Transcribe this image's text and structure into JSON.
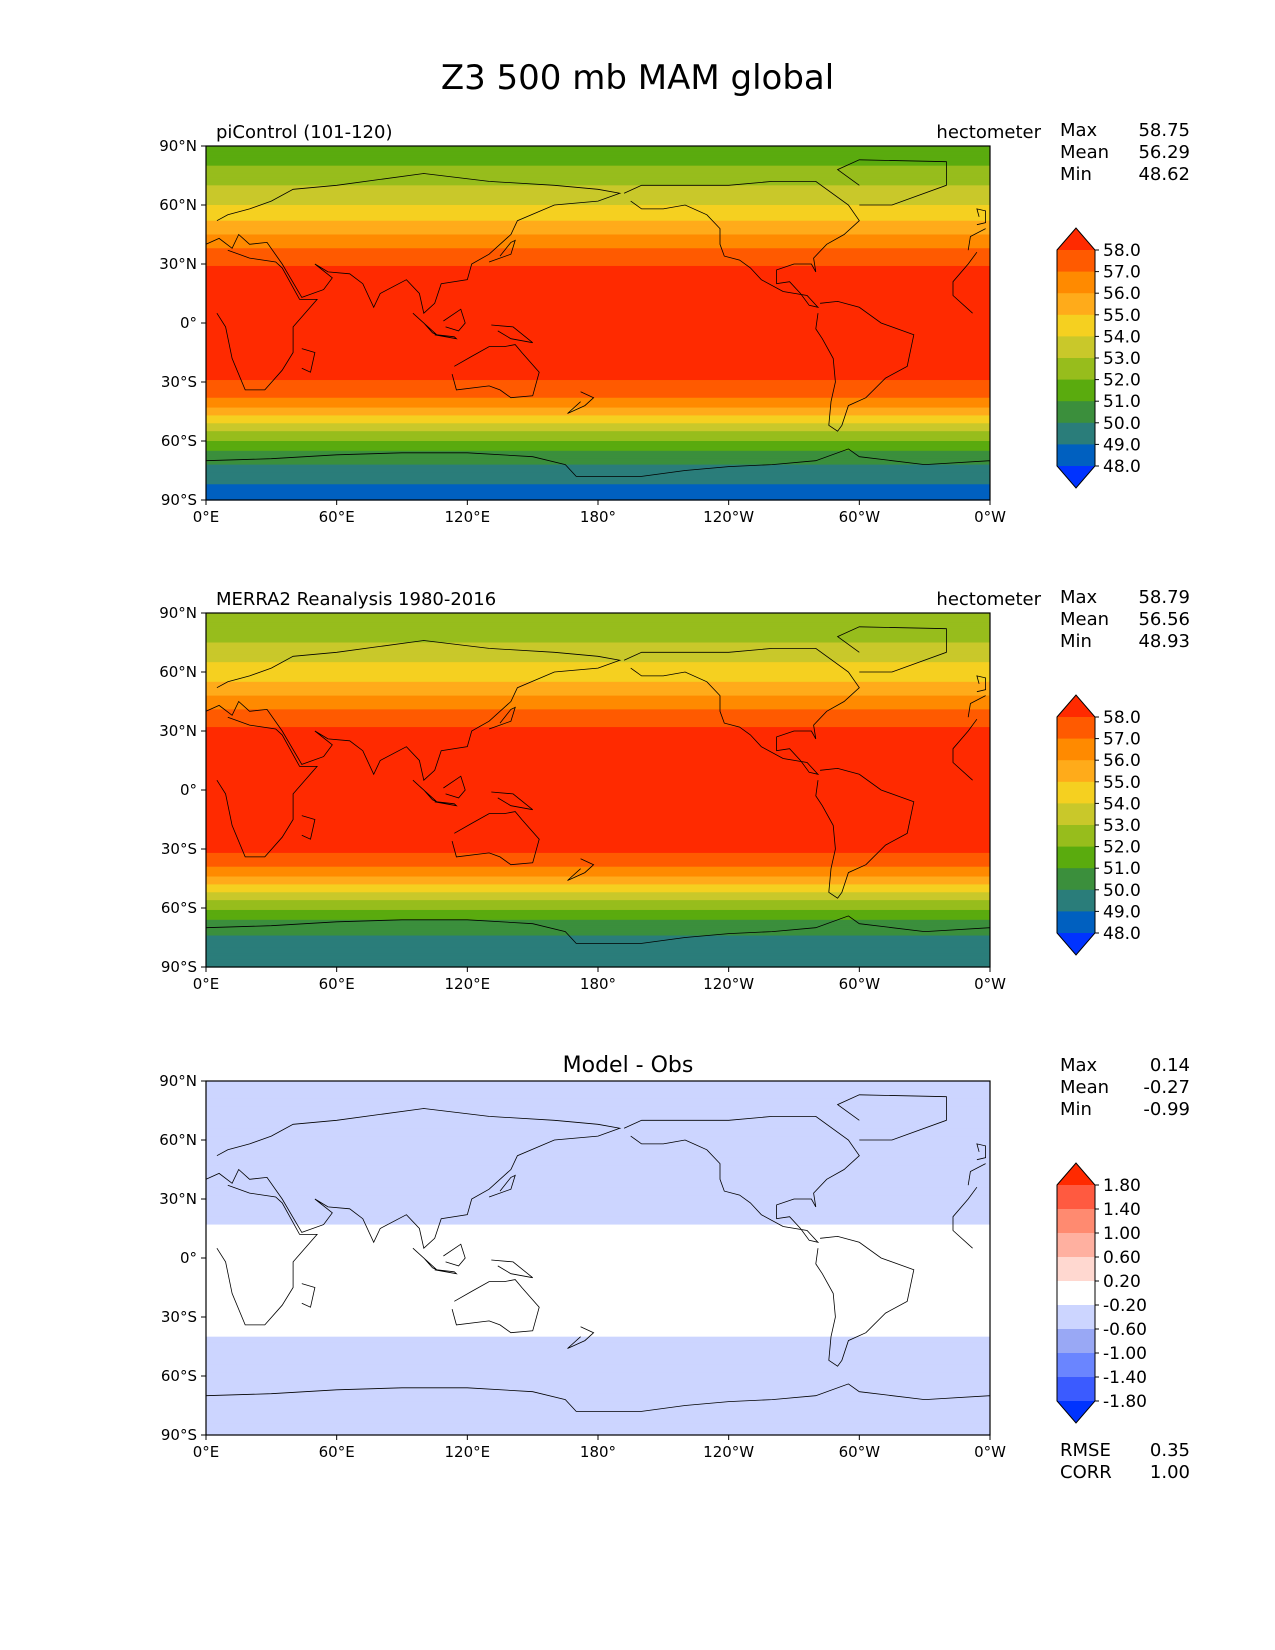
{
  "title": "Z3 500 mb MAM global",
  "lon_ticks": [
    "0°E",
    "60°E",
    "120°E",
    "180°",
    "120°W",
    "60°W",
    "0°W"
  ],
  "lat_ticks": [
    "90°N",
    "60°N",
    "30°N",
    "0°",
    "30°S",
    "60°S",
    "90°S"
  ],
  "panels": [
    {
      "left_label": "piControl (101-120)",
      "right_label": "hectometer",
      "center_label": "",
      "stats": {
        "max_label": "Max",
        "max": "58.75",
        "mean_label": "Mean",
        "mean": "56.29",
        "min_label": "Min",
        "min": "48.62"
      },
      "colorbar": {
        "levels": [
          "58.0",
          "57.0",
          "56.0",
          "55.0",
          "54.0",
          "53.0",
          "52.0",
          "51.0",
          "50.0",
          "49.0",
          "48.0"
        ],
        "colors": [
          "#ff2a00",
          "#ff5a00",
          "#ff8a00",
          "#ffab1a",
          "#f5d020",
          "#c9c82a",
          "#97bd1c",
          "#5aab0e",
          "#3b8f3c",
          "#2a7d7a",
          "#0060c0",
          "#0033ff"
        ]
      },
      "chart_data": {
        "type": "heatmap",
        "variable": "Z3 500 mb",
        "units": "hectometer",
        "xlim": [
          0,
          360
        ],
        "ylim": [
          -90,
          90
        ],
        "max": 58.75,
        "mean": 56.29,
        "min": 48.62,
        "lat_profile": [
          {
            "lat": 85,
            "value": 51.5
          },
          {
            "lat": 75,
            "value": 52.5
          },
          {
            "lat": 65,
            "value": 53.5
          },
          {
            "lat": 55,
            "value": 54.5
          },
          {
            "lat": 45,
            "value": 56.0
          },
          {
            "lat": 35,
            "value": 57.5
          },
          {
            "lat": 25,
            "value": 58.3
          },
          {
            "lat": 0,
            "value": 58.5
          },
          {
            "lat": -25,
            "value": 58.3
          },
          {
            "lat": -35,
            "value": 57.5
          },
          {
            "lat": -45,
            "value": 55.5
          },
          {
            "lat": -55,
            "value": 53.0
          },
          {
            "lat": -65,
            "value": 51.0
          },
          {
            "lat": -75,
            "value": 49.5
          },
          {
            "lat": -85,
            "value": 48.8
          }
        ]
      }
    },
    {
      "left_label": "MERRA2 Reanalysis 1980-2016",
      "right_label": "hectometer",
      "center_label": "",
      "stats": {
        "max_label": "Max",
        "max": "58.79",
        "mean_label": "Mean",
        "mean": "56.56",
        "min_label": "Min",
        "min": "48.93"
      },
      "colorbar": {
        "levels": [
          "58.0",
          "57.0",
          "56.0",
          "55.0",
          "54.0",
          "53.0",
          "52.0",
          "51.0",
          "50.0",
          "49.0",
          "48.0"
        ],
        "colors": [
          "#ff2a00",
          "#ff5a00",
          "#ff8a00",
          "#ffab1a",
          "#f5d020",
          "#c9c82a",
          "#97bd1c",
          "#5aab0e",
          "#3b8f3c",
          "#2a7d7a",
          "#0060c0",
          "#0033ff"
        ]
      },
      "chart_data": {
        "type": "heatmap",
        "variable": "Z3 500 mb",
        "units": "hectometer",
        "xlim": [
          0,
          360
        ],
        "ylim": [
          -90,
          90
        ],
        "max": 58.79,
        "mean": 56.56,
        "min": 48.93,
        "lat_profile": [
          {
            "lat": 85,
            "value": 52.0
          },
          {
            "lat": 75,
            "value": 53.0
          },
          {
            "lat": 65,
            "value": 54.0
          },
          {
            "lat": 55,
            "value": 55.0
          },
          {
            "lat": 45,
            "value": 56.5
          },
          {
            "lat": 35,
            "value": 57.8
          },
          {
            "lat": 25,
            "value": 58.4
          },
          {
            "lat": 0,
            "value": 58.6
          },
          {
            "lat": -25,
            "value": 58.4
          },
          {
            "lat": -35,
            "value": 57.8
          },
          {
            "lat": -45,
            "value": 55.8
          },
          {
            "lat": -55,
            "value": 53.2
          },
          {
            "lat": -65,
            "value": 51.2
          },
          {
            "lat": -75,
            "value": 49.8
          },
          {
            "lat": -85,
            "value": 49.5
          }
        ]
      }
    },
    {
      "left_label": "",
      "right_label": "",
      "center_label": "Model - Obs",
      "stats": {
        "max_label": "Max",
        "max": "0.14",
        "mean_label": "Mean",
        "mean": "-0.27",
        "min_label": "Min",
        "min": "-0.99"
      },
      "colorbar": {
        "levels": [
          "1.80",
          "1.40",
          "1.00",
          "0.60",
          "0.20",
          "-0.20",
          "-0.60",
          "-1.00",
          "-1.40",
          "-1.80"
        ],
        "colors": [
          "#ff2a00",
          "#ff5a40",
          "#ff8a70",
          "#ffb0a0",
          "#ffd8d0",
          "#ffffff",
          "#ccd5ff",
          "#99a8f5",
          "#6a85ff",
          "#3b5bff",
          "#0033ff"
        ]
      },
      "bottom_stats": {
        "rmse_label": "RMSE",
        "rmse": "0.35",
        "corr_label": "CORR",
        "corr": "1.00"
      },
      "chart_data": {
        "type": "heatmap",
        "variable": "Z3 500 mb difference",
        "xlim": [
          0,
          360
        ],
        "ylim": [
          -90,
          90
        ],
        "max": 0.14,
        "mean": -0.27,
        "min": -0.99,
        "rmse": 0.35,
        "corr": 1.0,
        "lat_profile": [
          {
            "lat": 85,
            "value": -0.3
          },
          {
            "lat": 60,
            "value": -0.5
          },
          {
            "lat": 40,
            "value": -0.5
          },
          {
            "lat": 25,
            "value": -0.3
          },
          {
            "lat": 0,
            "value": 0.0
          },
          {
            "lat": -30,
            "value": 0.0
          },
          {
            "lat": -45,
            "value": -0.3
          },
          {
            "lat": -55,
            "value": -0.5
          },
          {
            "lat": -70,
            "value": -0.4
          },
          {
            "lat": -85,
            "value": -0.6
          }
        ]
      }
    }
  ]
}
